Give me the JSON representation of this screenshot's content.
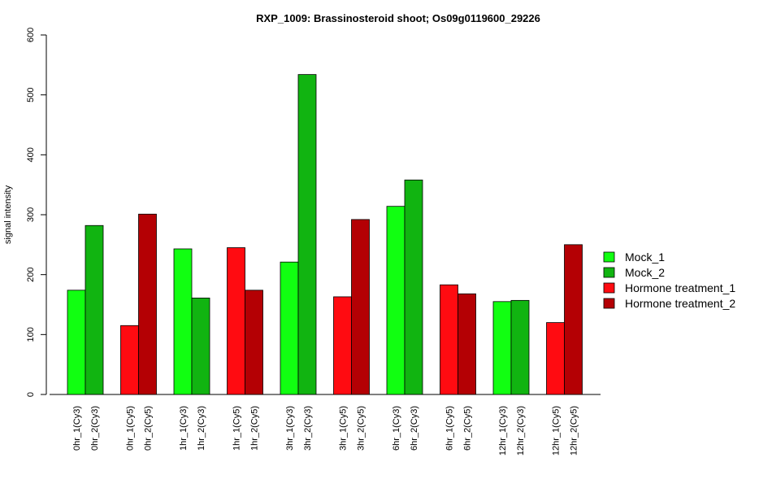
{
  "chart_data": {
    "type": "bar",
    "title": "RXP_1009: Brassinosteroid shoot; Os09g0119600_29226",
    "ylabel": "signal intensity",
    "xlabel": "",
    "ylim": [
      0,
      600
    ],
    "yticks": [
      0,
      100,
      200,
      300,
      400,
      500,
      600
    ],
    "categories": [
      "0hr_1(Cy3)",
      "0hr_2(Cy3)",
      "0hr_1(Cy5)",
      "0hr_2(Cy5)",
      "1hr_1(Cy3)",
      "1hr_2(Cy3)",
      "1hr_1(Cy5)",
      "1hr_2(Cy5)",
      "3hr_1(Cy3)",
      "3hr_2(Cy3)",
      "3hr_1(Cy5)",
      "3hr_2(Cy5)",
      "6hr_1(Cy3)",
      "6hr_2(Cy3)",
      "6hr_1(Cy5)",
      "6hr_2(Cy5)",
      "12hr_1(Cy3)",
      "12hr_2(Cy3)",
      "12hr_1(Cy5)",
      "12hr_2(Cy5)"
    ],
    "values": [
      174,
      282,
      115,
      301,
      243,
      161,
      245,
      174,
      221,
      534,
      163,
      292,
      314,
      358,
      183,
      168,
      155,
      157,
      120,
      250
    ],
    "series_index": [
      0,
      1,
      2,
      3,
      0,
      1,
      2,
      3,
      0,
      1,
      2,
      3,
      0,
      1,
      2,
      3,
      0,
      1,
      2,
      3
    ],
    "series": [
      {
        "name": "Mock_1",
        "color": "#11ff11"
      },
      {
        "name": "Mock_2",
        "color": "#11b411"
      },
      {
        "name": "Hormone treatment_1",
        "color": "#ff0b11"
      },
      {
        "name": "Hormone treatment_2",
        "color": "#b40004"
      }
    ],
    "legend_position": "right",
    "grid": false
  }
}
